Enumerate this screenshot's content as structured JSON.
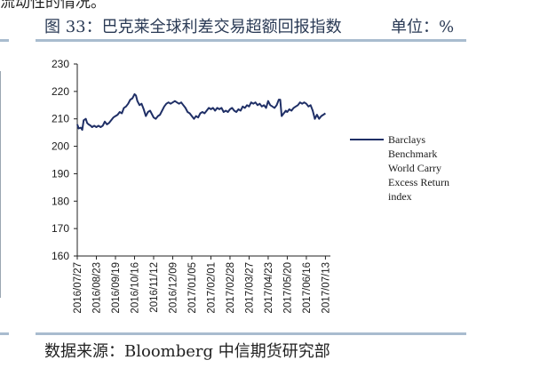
{
  "page": {
    "top_fragment": "流动性的情况。",
    "figure_title": "图 33：巴克莱全球利差交易超额回报指数",
    "unit_label": "单位：%",
    "source_label": "数据来源：Bloomberg  中信期货研究部"
  },
  "chart_data": {
    "type": "line",
    "title": "",
    "xlabel": "",
    "ylabel": "",
    "ylim": [
      160,
      230
    ],
    "yticks": [
      160,
      170,
      180,
      190,
      200,
      210,
      220,
      230
    ],
    "xlim": [
      "2016-07-27",
      "2017-07-20"
    ],
    "xticks": [
      "2016/07/27",
      "2016/08/23",
      "2016/09/19",
      "2016/10/16",
      "2016/11/12",
      "2016/12/09",
      "2017/01/05",
      "2017/02/01",
      "2017/02/28",
      "2017/03/27",
      "2017/04/23",
      "2017/05/20",
      "2017/06/16",
      "2017/07/13"
    ],
    "grid": false,
    "legend_position": "right",
    "line_color": "#1f2f66",
    "series": [
      {
        "name": "Barclays Benchmark World Carry Excess Return index",
        "points": [
          [
            "2016-07-27",
            208.0
          ],
          [
            "2016-07-29",
            206.5
          ],
          [
            "2016-08-01",
            206.8
          ],
          [
            "2016-08-03",
            206.0
          ],
          [
            "2016-08-05",
            209.5
          ],
          [
            "2016-08-08",
            210.0
          ],
          [
            "2016-08-10",
            208.5
          ],
          [
            "2016-08-12",
            208.0
          ],
          [
            "2016-08-15",
            207.5
          ],
          [
            "2016-08-17",
            207.0
          ],
          [
            "2016-08-20",
            207.5
          ],
          [
            "2016-08-23",
            207.0
          ],
          [
            "2016-08-26",
            207.5
          ],
          [
            "2016-08-29",
            207.0
          ],
          [
            "2016-09-01",
            207.5
          ],
          [
            "2016-09-04",
            209.0
          ],
          [
            "2016-09-07",
            208.0
          ],
          [
            "2016-09-10",
            208.5
          ],
          [
            "2016-09-13",
            209.5
          ],
          [
            "2016-09-16",
            210.5
          ],
          [
            "2016-09-19",
            211.0
          ],
          [
            "2016-09-22",
            211.5
          ],
          [
            "2016-09-25",
            212.5
          ],
          [
            "2016-09-28",
            212.0
          ],
          [
            "2016-10-01",
            214.0
          ],
          [
            "2016-10-04",
            214.5
          ],
          [
            "2016-10-07",
            215.5
          ],
          [
            "2016-10-10",
            217.0
          ],
          [
            "2016-10-13",
            217.5
          ],
          [
            "2016-10-16",
            219.0
          ],
          [
            "2016-10-18",
            218.5
          ],
          [
            "2016-10-20",
            216.5
          ],
          [
            "2016-10-23",
            215.0
          ],
          [
            "2016-10-26",
            215.5
          ],
          [
            "2016-10-29",
            213.5
          ],
          [
            "2016-11-01",
            211.0
          ],
          [
            "2016-11-04",
            212.5
          ],
          [
            "2016-11-07",
            213.0
          ],
          [
            "2016-11-10",
            211.5
          ],
          [
            "2016-11-12",
            210.5
          ],
          [
            "2016-11-15",
            210.0
          ],
          [
            "2016-11-18",
            211.0
          ],
          [
            "2016-11-21",
            211.5
          ],
          [
            "2016-11-24",
            213.0
          ],
          [
            "2016-11-27",
            214.5
          ],
          [
            "2016-11-30",
            215.5
          ],
          [
            "2016-12-03",
            216.0
          ],
          [
            "2016-12-06",
            215.5
          ],
          [
            "2016-12-09",
            216.0
          ],
          [
            "2016-12-12",
            216.5
          ],
          [
            "2016-12-15",
            216.0
          ],
          [
            "2016-12-18",
            215.5
          ],
          [
            "2016-12-21",
            216.0
          ],
          [
            "2016-12-24",
            215.0
          ],
          [
            "2016-12-27",
            214.0
          ],
          [
            "2016-12-30",
            212.5
          ],
          [
            "2017-01-02",
            212.0
          ],
          [
            "2017-01-05",
            211.0
          ],
          [
            "2017-01-08",
            210.0
          ],
          [
            "2017-01-11",
            211.0
          ],
          [
            "2017-01-14",
            210.5
          ],
          [
            "2017-01-17",
            212.0
          ],
          [
            "2017-01-20",
            212.5
          ],
          [
            "2017-01-23",
            212.0
          ],
          [
            "2017-01-26",
            213.0
          ],
          [
            "2017-01-29",
            214.0
          ],
          [
            "2017-02-01",
            213.5
          ],
          [
            "2017-02-04",
            214.0
          ],
          [
            "2017-02-07",
            213.0
          ],
          [
            "2017-02-10",
            214.0
          ],
          [
            "2017-02-13",
            213.5
          ],
          [
            "2017-02-16",
            214.0
          ],
          [
            "2017-02-19",
            212.5
          ],
          [
            "2017-02-22",
            213.0
          ],
          [
            "2017-02-25",
            212.5
          ],
          [
            "2017-02-28",
            213.5
          ],
          [
            "2017-03-03",
            214.0
          ],
          [
            "2017-03-06",
            213.0
          ],
          [
            "2017-03-09",
            212.5
          ],
          [
            "2017-03-12",
            213.5
          ],
          [
            "2017-03-15",
            213.0
          ],
          [
            "2017-03-18",
            214.5
          ],
          [
            "2017-03-21",
            214.0
          ],
          [
            "2017-03-24",
            215.0
          ],
          [
            "2017-03-27",
            214.5
          ],
          [
            "2017-03-30",
            216.0
          ],
          [
            "2017-04-02",
            215.5
          ],
          [
            "2017-04-05",
            216.0
          ],
          [
            "2017-04-08",
            215.0
          ],
          [
            "2017-04-11",
            215.5
          ],
          [
            "2017-04-14",
            214.5
          ],
          [
            "2017-04-17",
            215.0
          ],
          [
            "2017-04-20",
            214.0
          ],
          [
            "2017-04-23",
            216.5
          ],
          [
            "2017-04-26",
            215.0
          ],
          [
            "2017-04-29",
            214.5
          ],
          [
            "2017-05-02",
            214.0
          ],
          [
            "2017-05-05",
            215.0
          ],
          [
            "2017-05-08",
            217.0
          ],
          [
            "2017-05-10",
            217.0
          ],
          [
            "2017-05-12",
            211.0
          ],
          [
            "2017-05-15",
            212.0
          ],
          [
            "2017-05-18",
            213.0
          ],
          [
            "2017-05-20",
            212.5
          ],
          [
            "2017-05-23",
            213.5
          ],
          [
            "2017-05-26",
            213.0
          ],
          [
            "2017-05-29",
            214.0
          ],
          [
            "2017-06-01",
            214.5
          ],
          [
            "2017-06-04",
            215.0
          ],
          [
            "2017-06-07",
            216.0
          ],
          [
            "2017-06-10",
            215.5
          ],
          [
            "2017-06-13",
            216.0
          ],
          [
            "2017-06-16",
            215.5
          ],
          [
            "2017-06-19",
            214.5
          ],
          [
            "2017-06-22",
            215.0
          ],
          [
            "2017-06-25",
            213.0
          ],
          [
            "2017-06-28",
            210.0
          ],
          [
            "2017-07-01",
            211.5
          ],
          [
            "2017-07-04",
            210.0
          ],
          [
            "2017-07-07",
            211.0
          ],
          [
            "2017-07-10",
            211.5
          ],
          [
            "2017-07-13",
            212.0
          ]
        ]
      }
    ]
  }
}
